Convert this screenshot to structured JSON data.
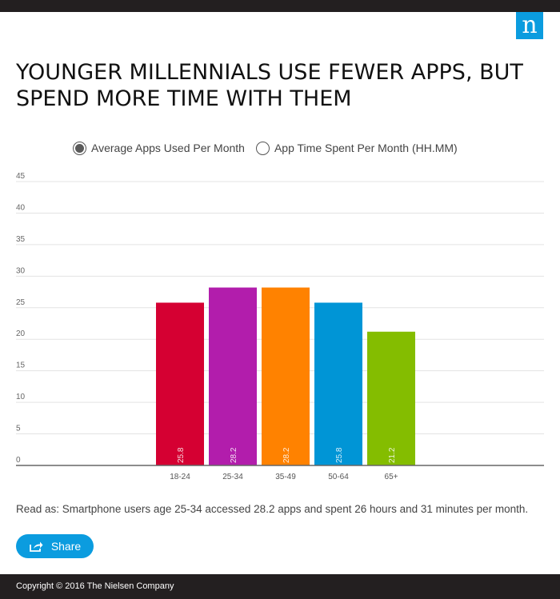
{
  "brand": {
    "logo_letter": "n",
    "accent": "#0b9cdf",
    "dark": "#231f20"
  },
  "title": "YOUNGER MILLENNIALS USE FEWER APPS, BUT SPEND MORE TIME WITH THEM",
  "legend": {
    "options": [
      {
        "label": "Average Apps Used Per Month",
        "selected": true
      },
      {
        "label": "App Time Spent Per Month (HH.MM)",
        "selected": false
      }
    ]
  },
  "chart_data": {
    "type": "bar",
    "categories": [
      "18-24",
      "25-34",
      "35-49",
      "50-64",
      "65+"
    ],
    "values": [
      25.8,
      28.2,
      28.2,
      25.8,
      21.2
    ],
    "data_labels": [
      "25.8",
      "28.2",
      "28.2",
      "25.8",
      "21.2"
    ],
    "colors": [
      "#d50032",
      "#b21dac",
      "#ff8200",
      "#0095d6",
      "#84bd00"
    ],
    "ylim": [
      0,
      45
    ],
    "yticks": [
      0,
      5,
      10,
      15,
      20,
      25,
      30,
      35,
      40,
      45
    ],
    "grid": true,
    "title": "",
    "xlabel": "",
    "ylabel": ""
  },
  "note": "Read as: Smartphone users age 25-34 accessed 28.2 apps and spent 26 hours and 31 minutes per month.",
  "share_label": "Share",
  "share_icon": "share-icon",
  "footer": "Copyright © 2016 The Nielsen Company"
}
